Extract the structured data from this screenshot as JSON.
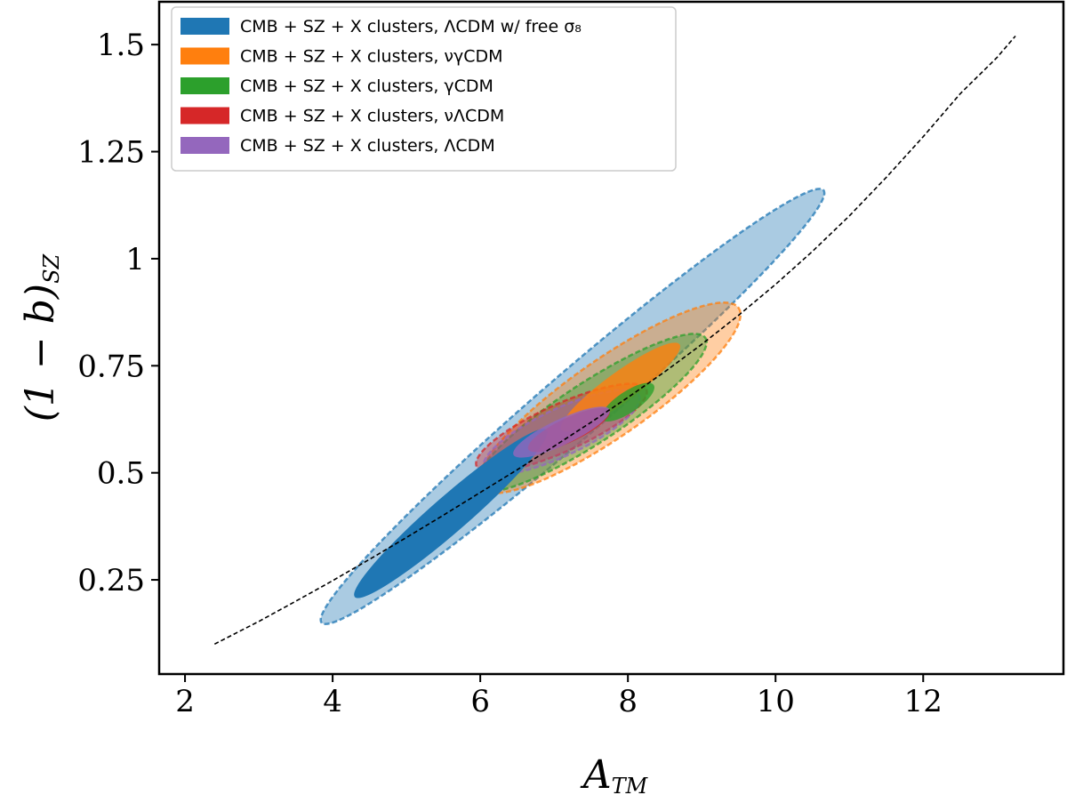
{
  "chart_data": {
    "type": "contour",
    "title": "",
    "xlabel": "A",
    "xlabel_sub": "TM",
    "ylabel": "(1 − b)",
    "ylabel_sub": "SZ",
    "xlim": [
      1.65,
      13.9
    ],
    "ylim": [
      0.03,
      1.6
    ],
    "xticks": [
      2,
      4,
      6,
      8,
      10,
      12
    ],
    "xtick_labels": [
      "2",
      "4",
      "6",
      "8",
      "10",
      "12"
    ],
    "yticks": [
      0.25,
      0.5,
      0.75,
      1.0,
      1.25,
      1.5
    ],
    "ytick_labels": [
      "0.25",
      "0.5",
      "0.75",
      "1",
      "1.25",
      "1.5"
    ],
    "grid": false,
    "legend_position": "top-left",
    "series": [
      {
        "name": "CMB + SZ + X clusters, ΛCDM w/ free σ₈",
        "color": "#1f77b4",
        "contour_95": {
          "center": [
            7.25,
            0.655
          ],
          "axis_end": [
            10.65,
            1.16
          ],
          "half_width": 0.075
        },
        "contour_68": {
          "center": [
            5.6,
            0.405
          ],
          "axis_end": [
            6.9,
            0.6
          ],
          "half_width": 0.042
        }
      },
      {
        "name": "CMB + SZ + X clusters, νγCDM",
        "color": "#ff7f0e",
        "contour_95": {
          "center": [
            7.75,
            0.675
          ],
          "axis_end": [
            9.5,
            0.885
          ],
          "half_width": 0.09
        },
        "contour_68": {
          "center": [
            7.9,
            0.7
          ],
          "axis_end": [
            8.7,
            0.8
          ],
          "half_width": 0.035
        }
      },
      {
        "name": "CMB + SZ + X clusters, γCDM",
        "color": "#2ca02c",
        "contour_95": {
          "center": [
            7.5,
            0.64
          ],
          "axis_end": [
            9.05,
            0.815
          ],
          "half_width": 0.07
        },
        "contour_68": {
          "center": [
            8.0,
            0.665
          ],
          "axis_end": [
            8.35,
            0.705
          ],
          "half_width": 0.025
        }
      },
      {
        "name": "CMB + SZ + X clusters, νΛCDM",
        "color": "#d62728",
        "contour_95": {
          "center": [
            7.1,
            0.605
          ],
          "axis_end": [
            8.25,
            0.695
          ],
          "half_width": 0.055
        },
        "contour_68": {
          "center": [
            7.2,
            0.6
          ],
          "axis_end": [
            7.75,
            0.645
          ],
          "half_width": 0.028
        }
      },
      {
        "name": "CMB + SZ + X clusters, ΛCDM",
        "color": "#9467bd",
        "contour_95": {
          "center": [
            7.1,
            0.595
          ],
          "axis_end": [
            8.15,
            0.68
          ],
          "half_width": 0.055
        },
        "contour_68": {
          "center": [
            7.1,
            0.595
          ],
          "axis_end": [
            7.75,
            0.648
          ],
          "half_width": 0.03
        }
      }
    ],
    "reference_curve": {
      "style": "dashed",
      "color": "#000000",
      "x": [
        2.4,
        3.0,
        3.5,
        4.0,
        4.5,
        5.0,
        5.5,
        6.0,
        6.5,
        7.0,
        7.5,
        8.0,
        8.5,
        9.0,
        9.5,
        10.0,
        10.5,
        11.0,
        11.5,
        12.0,
        12.5,
        13.0,
        13.25
      ],
      "y": [
        0.1,
        0.153,
        0.2,
        0.248,
        0.298,
        0.349,
        0.401,
        0.454,
        0.507,
        0.562,
        0.618,
        0.676,
        0.736,
        0.8,
        0.868,
        0.94,
        1.017,
        1.1,
        1.19,
        1.285,
        1.385,
        1.47,
        1.52
      ]
    }
  }
}
